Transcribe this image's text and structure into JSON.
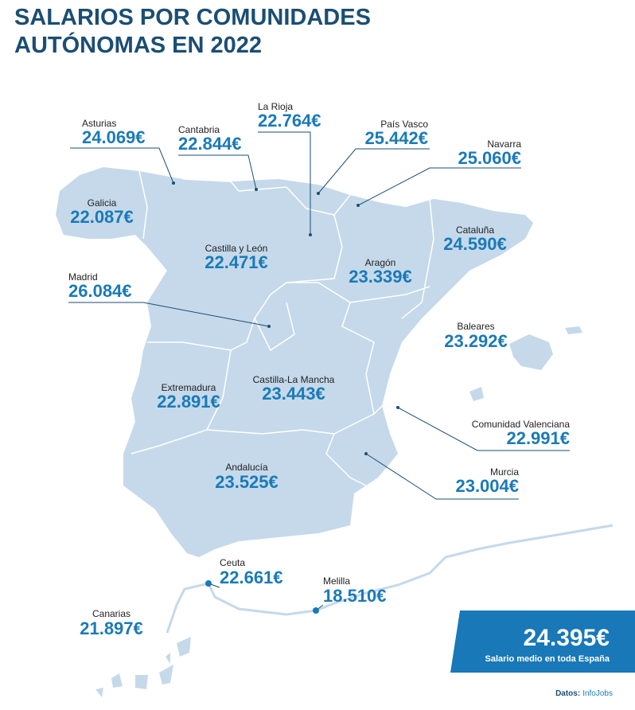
{
  "header": {
    "title_lines": [
      "SALARIOS POR COMUNIDADES",
      "AUTÓNOMAS EN 2022"
    ]
  },
  "regions": [
    {
      "name": "Asturias",
      "salary": "24.069€"
    },
    {
      "name": "Cantabria",
      "salary": "22.844€"
    },
    {
      "name": "La Rioja",
      "salary": "22.764€"
    },
    {
      "name": "País Vasco",
      "salary": "25.442€"
    },
    {
      "name": "Navarra",
      "salary": "25.060€"
    },
    {
      "name": "Galicia",
      "salary": "22.087€"
    },
    {
      "name": "Castilla y León",
      "salary": "22.471€"
    },
    {
      "name": "Aragón",
      "salary": "23.339€"
    },
    {
      "name": "Cataluña",
      "salary": "24.590€"
    },
    {
      "name": "Madrid",
      "salary": "26.084€"
    },
    {
      "name": "Baleares",
      "salary": "23.292€"
    },
    {
      "name": "Extremadura",
      "salary": "22.891€"
    },
    {
      "name": "Castilla-La Mancha",
      "salary": "23.443€"
    },
    {
      "name": "Comunidad Valenciana",
      "salary": "22.991€"
    },
    {
      "name": "Murcia",
      "salary": "23.004€"
    },
    {
      "name": "Andalucía",
      "salary": "23.525€"
    },
    {
      "name": "Ceuta",
      "salary": "22.661€"
    },
    {
      "name": "Melilla",
      "salary": "18.510€"
    },
    {
      "name": "Canarias",
      "salary": "21.897€"
    }
  ],
  "average": {
    "salary": "24.395€",
    "label": "Salario medio en toda España"
  },
  "source": {
    "label": "Datos:",
    "name": "InfoJobs"
  }
}
